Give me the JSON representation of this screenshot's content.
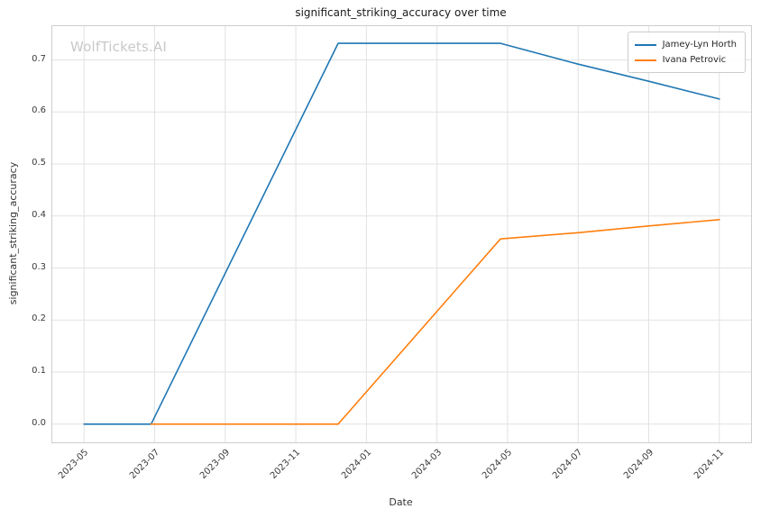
{
  "chart_data": {
    "type": "line",
    "title": "significant_striking_accuracy over time",
    "xlabel": "Date",
    "ylabel": "significant_striking_accuracy",
    "watermark": "WolfTickets.AI",
    "grid": true,
    "legend_position": "upper right",
    "x_unit": "months since 2023-01",
    "xlim": [
      3.1,
      22.9
    ],
    "ylim": [
      -0.035,
      0.765
    ],
    "x_ticks": [
      {
        "pos": 4,
        "label": "2023-05"
      },
      {
        "pos": 6,
        "label": "2023-07"
      },
      {
        "pos": 8,
        "label": "2023-09"
      },
      {
        "pos": 10,
        "label": "2023-11"
      },
      {
        "pos": 12,
        "label": "2024-01"
      },
      {
        "pos": 14,
        "label": "2024-03"
      },
      {
        "pos": 16,
        "label": "2024-05"
      },
      {
        "pos": 18,
        "label": "2024-07"
      },
      {
        "pos": 20,
        "label": "2024-09"
      },
      {
        "pos": 22,
        "label": "2024-11"
      }
    ],
    "y_ticks": [
      {
        "pos": 0.0,
        "label": "0.0"
      },
      {
        "pos": 0.1,
        "label": "0.1"
      },
      {
        "pos": 0.2,
        "label": "0.2"
      },
      {
        "pos": 0.3,
        "label": "0.3"
      },
      {
        "pos": 0.4,
        "label": "0.4"
      },
      {
        "pos": 0.5,
        "label": "0.5"
      },
      {
        "pos": 0.6,
        "label": "0.6"
      },
      {
        "pos": 0.7,
        "label": "0.7"
      }
    ],
    "series": [
      {
        "name": "Jamey-Lyn Horth",
        "color": "#1f77b4",
        "points": [
          [
            4.0,
            0.0
          ],
          [
            5.9,
            0.0
          ],
          [
            11.2,
            0.732
          ],
          [
            15.8,
            0.732
          ],
          [
            18.0,
            0.692
          ],
          [
            20.0,
            0.659
          ],
          [
            22.0,
            0.625
          ]
        ]
      },
      {
        "name": "Ivana Petrovic",
        "color": "#ff7f0e",
        "points": [
          [
            5.9,
            0.0
          ],
          [
            11.2,
            0.0
          ],
          [
            15.8,
            0.356
          ],
          [
            18.0,
            0.368
          ],
          [
            20.0,
            0.381
          ],
          [
            22.0,
            0.393
          ]
        ]
      }
    ],
    "style": {
      "grid_color": "#e2e2e2",
      "spine_color": "#cdcdcd",
      "line_width": 1.6
    }
  }
}
